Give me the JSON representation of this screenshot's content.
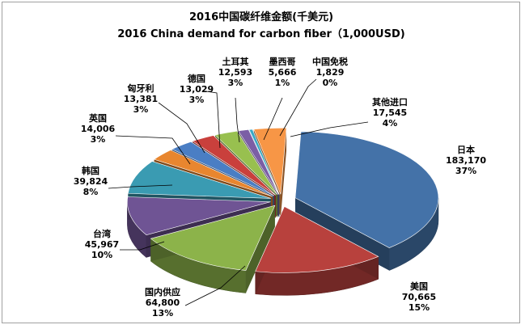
{
  "chart_data": {
    "type": "pie",
    "style": "3d-exploded",
    "title": "2016中国碳纤维金额(千美元)",
    "subtitle": "2016 China demand for carbon fiber（1,000USD)",
    "legend": "none",
    "slices": [
      {
        "label": "日本",
        "value": 183170,
        "value_text": "183,170",
        "percent_text": "37%",
        "color": "#4472a8"
      },
      {
        "label": "美国",
        "value": 70665,
        "value_text": "70,665",
        "percent_text": "15%",
        "color": "#b8413d"
      },
      {
        "label": "国内供应",
        "value": 64800,
        "value_text": "64,800",
        "percent_text": "13%",
        "color": "#8cb34a"
      },
      {
        "label": "台湾",
        "value": 45967,
        "value_text": "45,967",
        "percent_text": "10%",
        "color": "#6f5494"
      },
      {
        "label": "韩国",
        "value": 39824,
        "value_text": "39,824",
        "percent_text": "8%",
        "color": "#3a9bb2"
      },
      {
        "label": "英国",
        "value": 14006,
        "value_text": "14,006",
        "percent_text": "3%",
        "color": "#e8862f"
      },
      {
        "label": "匈牙利",
        "value": 13381,
        "value_text": "13,381",
        "percent_text": "3%",
        "color": "#4a7ec4"
      },
      {
        "label": "德国",
        "value": 13029,
        "value_text": "13,029",
        "percent_text": "3%",
        "color": "#c9403c"
      },
      {
        "label": "土耳其",
        "value": 12593,
        "value_text": "12,593",
        "percent_text": "3%",
        "color": "#98c04f"
      },
      {
        "label": "墨西哥",
        "value": 5666,
        "value_text": "5,666",
        "percent_text": "1%",
        "color": "#7b5ea5"
      },
      {
        "label": "中国免税",
        "value": 1829,
        "value_text": "1,829",
        "percent_text": "0%",
        "color": "#38a9c6"
      },
      {
        "label": "其他进口",
        "value": 17545,
        "value_text": "17,545",
        "percent_text": "4%",
        "color": "#f79646"
      }
    ]
  }
}
